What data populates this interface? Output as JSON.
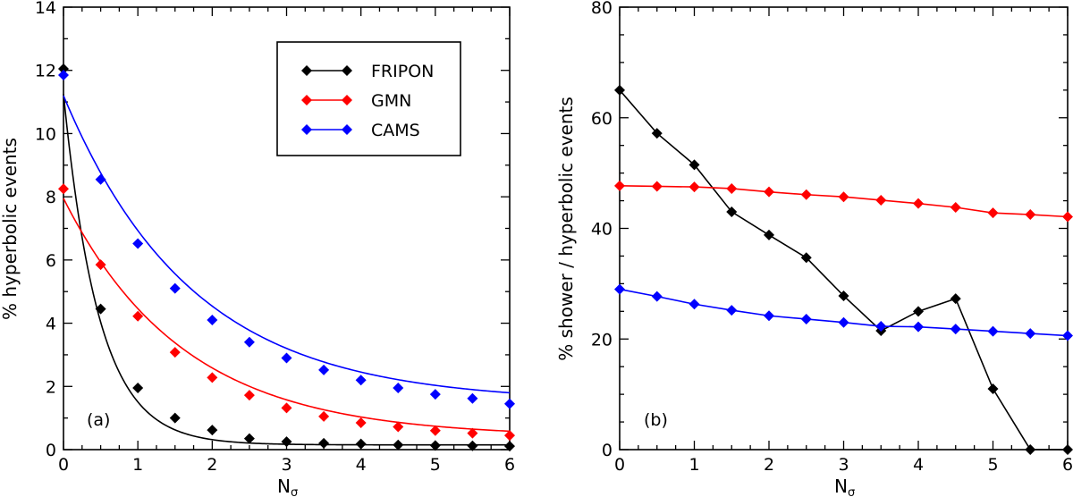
{
  "colors": {
    "FRIPON": "#000000",
    "GMN": "#ff0000",
    "CAMS": "#0000ff"
  },
  "chart_data": [
    {
      "type": "scatter",
      "panel_label": "(a)",
      "xlabel_main": "N",
      "xlabel_sub": "σ",
      "ylabel": "% hyperbolic events",
      "xlim": [
        0,
        6
      ],
      "ylim": [
        0,
        14
      ],
      "x_ticks": [
        "0",
        "1",
        "2",
        "3",
        "4",
        "5",
        "6"
      ],
      "y_ticks": [
        "0",
        "2",
        "4",
        "6",
        "8",
        "10",
        "12",
        "14"
      ],
      "legend": {
        "position": "top-right",
        "entries": [
          "FRIPON",
          "GMN",
          "CAMS"
        ]
      },
      "x": [
        0,
        0.5,
        1,
        1.5,
        2,
        2.5,
        3,
        3.5,
        4,
        4.5,
        5,
        5.5,
        6
      ],
      "series": [
        {
          "name": "FRIPON",
          "values": [
            12.05,
            4.45,
            1.95,
            1.0,
            0.62,
            0.35,
            0.25,
            0.2,
            0.18,
            0.15,
            0.13,
            0.12,
            0.11
          ],
          "fit": {
            "a": 11.1,
            "k": 2.1,
            "c": 0.15
          }
        },
        {
          "name": "GMN",
          "values": [
            8.25,
            5.85,
            4.22,
            3.08,
            2.28,
            1.72,
            1.32,
            1.05,
            0.85,
            0.72,
            0.6,
            0.52,
            0.45
          ],
          "fit": {
            "a": 7.55,
            "k": 0.62,
            "c": 0.4
          }
        },
        {
          "name": "CAMS",
          "values": [
            11.85,
            8.55,
            6.52,
            5.1,
            4.1,
            3.4,
            2.9,
            2.52,
            2.2,
            1.95,
            1.75,
            1.62,
            1.45
          ],
          "fit": {
            "a": 9.7,
            "k": 0.58,
            "c": 1.5
          }
        }
      ]
    },
    {
      "type": "line",
      "panel_label": "(b)",
      "xlabel_main": "N",
      "xlabel_sub": "σ",
      "ylabel": "% shower / hyperbolic events",
      "xlim": [
        0,
        6
      ],
      "ylim": [
        0,
        80
      ],
      "x_ticks": [
        "0",
        "1",
        "2",
        "3",
        "4",
        "5",
        "6"
      ],
      "y_ticks": [
        "0",
        "20",
        "40",
        "60",
        "80"
      ],
      "x": [
        0,
        0.5,
        1,
        1.5,
        2,
        2.5,
        3,
        3.5,
        4,
        4.5,
        5,
        5.5,
        6
      ],
      "series": [
        {
          "name": "FRIPON",
          "values": [
            65,
            57.2,
            51.5,
            43,
            38.8,
            34.7,
            27.8,
            21.5,
            25,
            27.3,
            11,
            0,
            0
          ]
        },
        {
          "name": "GMN",
          "values": [
            47.7,
            47.6,
            47.5,
            47.2,
            46.6,
            46.1,
            45.7,
            45.1,
            44.5,
            43.8,
            42.8,
            42.5,
            42.1
          ]
        },
        {
          "name": "CAMS",
          "values": [
            29,
            27.7,
            26.3,
            25.2,
            24.2,
            23.6,
            23,
            22.3,
            22.2,
            21.8,
            21.4,
            21,
            20.6
          ]
        }
      ]
    }
  ]
}
